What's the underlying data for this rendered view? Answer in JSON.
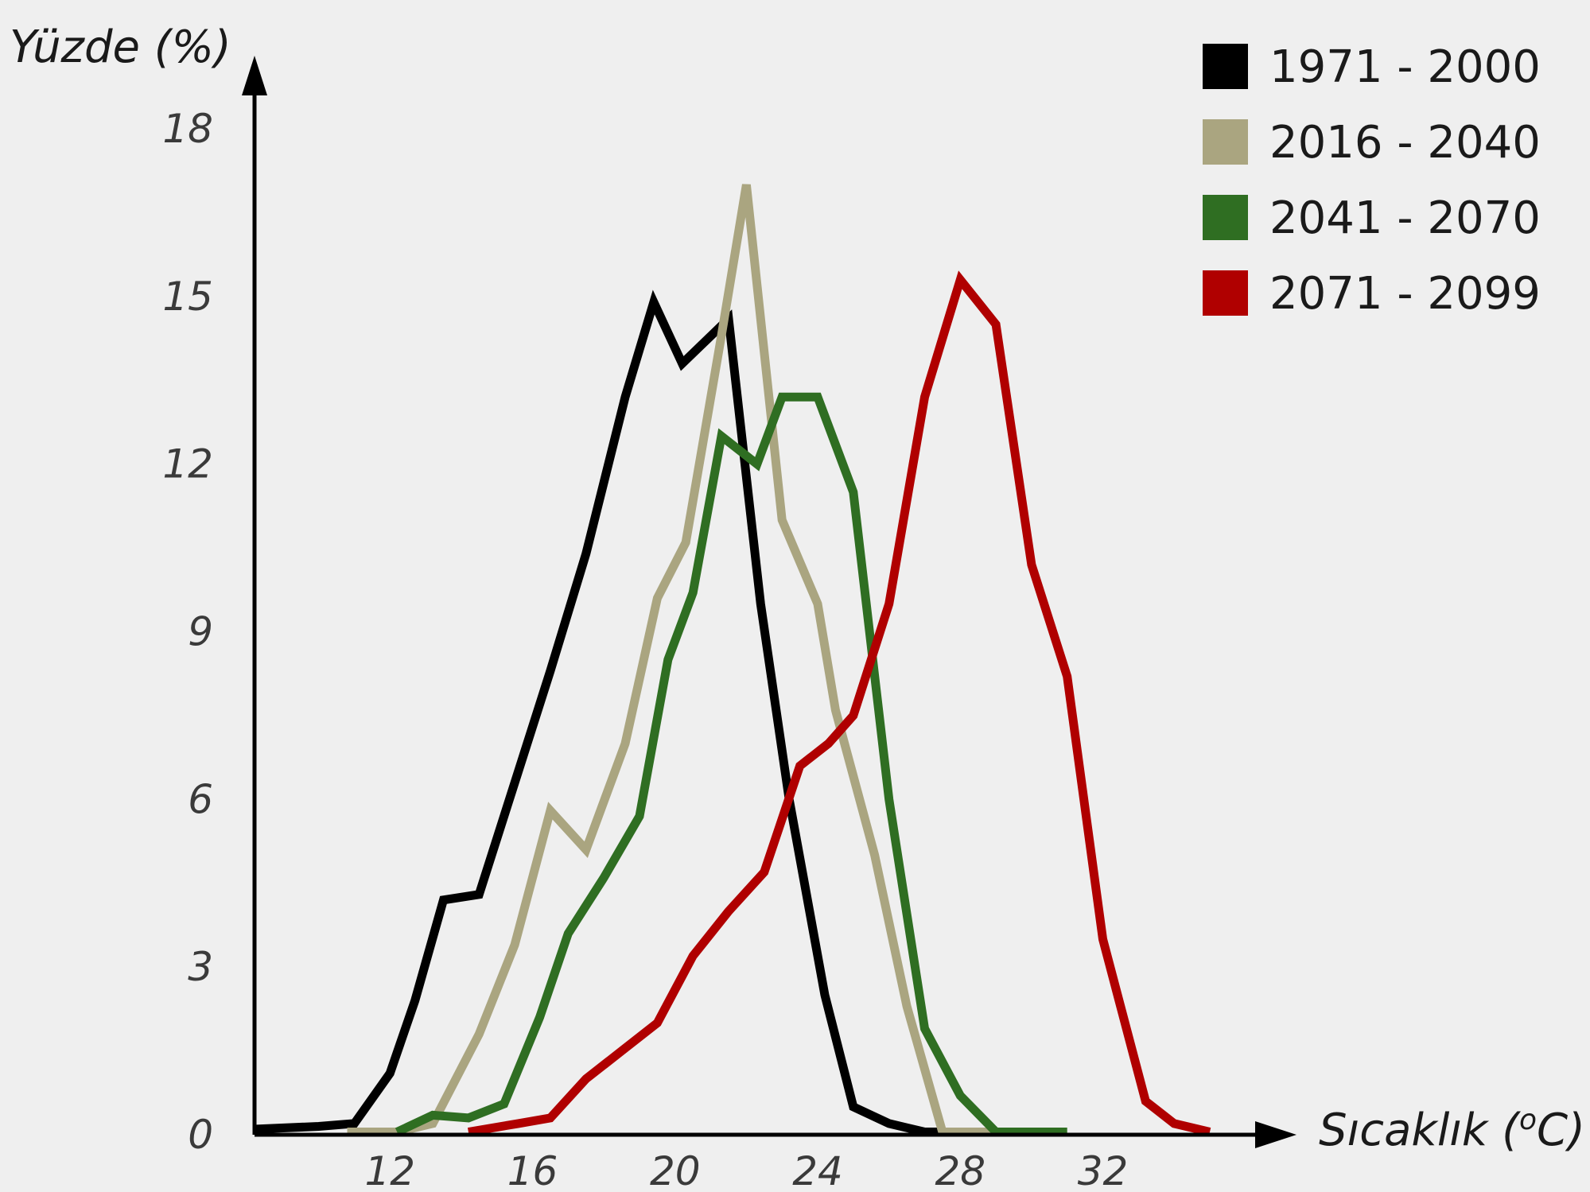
{
  "chart_data": {
    "type": "line",
    "ylabel": "Yüzde (%)",
    "xlabel_prefix": "Sıcaklık (",
    "xlabel_sup": "o",
    "xlabel_suffix": "C)",
    "xlim": [
      8.2,
      34.8
    ],
    "ylim": [
      0,
      18
    ],
    "xticks": [
      12,
      16,
      20,
      24,
      28,
      32
    ],
    "yticks": [
      0,
      3,
      6,
      9,
      12,
      15,
      18
    ],
    "grid": false,
    "legend_position": "top-right",
    "series": [
      {
        "name": "1971 - 2000",
        "color": "#000000",
        "x": [
          8.2,
          10,
          11,
          12,
          12.7,
          13.5,
          14.5,
          15.6,
          16.5,
          17.5,
          18.6,
          19.4,
          20.2,
          21.5,
          22.4,
          23.2,
          24.2,
          25,
          26,
          27,
          28
        ],
        "y": [
          0.1,
          0.15,
          0.2,
          1.1,
          2.4,
          4.2,
          4.3,
          6.5,
          8.3,
          10.4,
          13.2,
          14.9,
          13.8,
          14.6,
          9.5,
          6.0,
          2.5,
          0.5,
          0.2,
          0.05,
          0.05
        ]
      },
      {
        "name": "2016 - 2040",
        "color": "#aaa580",
        "x": [
          10.8,
          12.2,
          13.2,
          14.5,
          15.5,
          16.5,
          17.5,
          18.6,
          19.5,
          20.3,
          21.3,
          22,
          23,
          24,
          24.5,
          25.6,
          26.5,
          27.5,
          28.5,
          29.5
        ],
        "y": [
          0.05,
          0.05,
          0.2,
          1.8,
          3.4,
          5.8,
          5.1,
          7.0,
          9.6,
          10.6,
          14.3,
          17.0,
          11.0,
          9.5,
          7.6,
          5.0,
          2.3,
          0.05,
          0.05,
          0.05
        ]
      },
      {
        "name": "2041 - 2070",
        "color": "#2f6e22",
        "x": [
          12.2,
          13.2,
          14.2,
          15.2,
          16.2,
          17,
          18,
          19,
          19.8,
          20.5,
          21.3,
          22.3,
          23,
          24,
          25,
          26,
          27,
          28,
          29,
          30,
          31
        ],
        "y": [
          0.05,
          0.35,
          0.3,
          0.55,
          2.1,
          3.6,
          4.6,
          5.7,
          8.5,
          9.7,
          12.5,
          12.0,
          13.2,
          13.2,
          11.5,
          6.0,
          1.9,
          0.7,
          0.05,
          0.05,
          0.05
        ]
      },
      {
        "name": "2071 - 2099",
        "color": "#b00000",
        "x": [
          14.2,
          15.6,
          16.5,
          17.5,
          18.5,
          19.5,
          20.5,
          21.5,
          22.5,
          23.5,
          24.3,
          25,
          26,
          27,
          28,
          29,
          30,
          31,
          32,
          33.2,
          34,
          35
        ],
        "y": [
          0.05,
          0.2,
          0.3,
          1.0,
          1.5,
          2.0,
          3.2,
          4.0,
          4.7,
          6.6,
          7.0,
          7.5,
          9.5,
          13.2,
          15.3,
          14.5,
          10.2,
          8.2,
          3.5,
          0.6,
          0.2,
          0.05
        ]
      }
    ]
  }
}
